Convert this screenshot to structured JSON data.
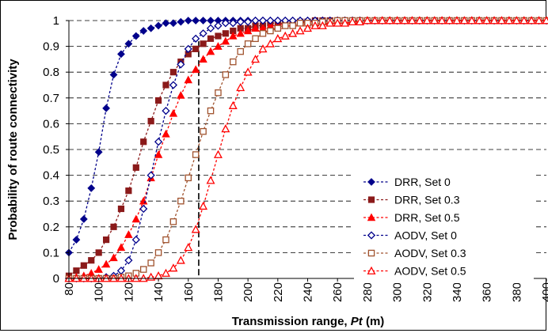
{
  "chart_data": {
    "type": "line",
    "title": "",
    "xlabel": "Transmission range, ",
    "xlabel_italic": "Pt",
    "xlabel_unit": " (m)",
    "ylabel": "Probability of route connectivity",
    "xlim": [
      80,
      400
    ],
    "ylim": [
      0,
      1
    ],
    "xticks": [
      80,
      100,
      120,
      140,
      160,
      180,
      200,
      220,
      240,
      260,
      280,
      300,
      320,
      340,
      360,
      380,
      400
    ],
    "yticks": [
      0,
      0.1,
      0.2,
      0.3,
      0.4,
      0.5,
      0.6,
      0.7,
      0.8,
      0.9,
      1
    ],
    "grid": "horizontal dashed",
    "legend_position": "bottom-right",
    "vertical_reference_line": {
      "x": 167
    },
    "x": [
      80,
      85,
      90,
      95,
      100,
      105,
      110,
      115,
      120,
      125,
      130,
      135,
      140,
      145,
      150,
      155,
      160,
      165,
      170,
      175,
      180,
      185,
      190,
      195,
      200,
      205,
      210,
      215,
      220,
      225,
      230,
      235,
      240,
      245,
      250,
      255,
      260,
      265,
      270,
      275,
      280,
      285,
      290,
      295,
      300,
      305,
      310,
      315,
      320,
      325,
      330,
      335,
      340,
      345,
      350,
      355,
      360,
      365,
      370,
      375,
      380,
      385,
      390,
      395,
      400
    ],
    "series": [
      {
        "name": "DRR, Set 0",
        "color": "#00008b",
        "marker": "diamond",
        "filled": true,
        "values": [
          0.1,
          0.15,
          0.23,
          0.35,
          0.49,
          0.66,
          0.79,
          0.87,
          0.91,
          0.94,
          0.96,
          0.97,
          0.98,
          0.99,
          0.99,
          0.995,
          1,
          1,
          1,
          1,
          1,
          1,
          1,
          1,
          1,
          1,
          1,
          1,
          1,
          1,
          1,
          1,
          1,
          1,
          1,
          1,
          1,
          1,
          1,
          1,
          1,
          1,
          1,
          1,
          1,
          1,
          1,
          1,
          1,
          1,
          1,
          1,
          1,
          1,
          1,
          1,
          1,
          1,
          1,
          1,
          1,
          1,
          1,
          1,
          1
        ]
      },
      {
        "name": "DRR, Set 0.3",
        "color": "#8b1a1a",
        "marker": "square",
        "filled": true,
        "values": [
          0.01,
          0.03,
          0.05,
          0.07,
          0.1,
          0.15,
          0.2,
          0.27,
          0.34,
          0.43,
          0.53,
          0.61,
          0.69,
          0.75,
          0.8,
          0.84,
          0.87,
          0.89,
          0.91,
          0.93,
          0.94,
          0.95,
          0.96,
          0.97,
          0.97,
          0.98,
          0.98,
          0.99,
          0.99,
          0.99,
          0.99,
          0.995,
          0.995,
          1,
          1,
          1,
          1,
          1,
          1,
          1,
          1,
          1,
          1,
          1,
          1,
          1,
          1,
          1,
          1,
          1,
          1,
          1,
          1,
          1,
          1,
          1,
          1,
          1,
          1,
          1,
          1,
          1,
          1,
          1,
          1
        ]
      },
      {
        "name": "DRR, Set 0.5",
        "color": "#ff0000",
        "marker": "triangle",
        "filled": true,
        "values": [
          0.002,
          0.005,
          0.01,
          0.02,
          0.035,
          0.055,
          0.08,
          0.12,
          0.17,
          0.23,
          0.3,
          0.39,
          0.48,
          0.56,
          0.64,
          0.71,
          0.77,
          0.81,
          0.85,
          0.88,
          0.9,
          0.92,
          0.94,
          0.95,
          0.96,
          0.97,
          0.97,
          0.98,
          0.98,
          0.99,
          0.99,
          0.99,
          0.995,
          0.995,
          1,
          1,
          1,
          1,
          1,
          1,
          1,
          1,
          1,
          1,
          1,
          1,
          1,
          1,
          1,
          1,
          1,
          1,
          1,
          1,
          1,
          1,
          1,
          1,
          1,
          1,
          1,
          1,
          1,
          1,
          1
        ]
      },
      {
        "name": "AODV, Set 0",
        "color": "#00008b",
        "marker": "diamond",
        "filled": false,
        "values": [
          0,
          0,
          0,
          0,
          0,
          0.005,
          0.01,
          0.03,
          0.07,
          0.15,
          0.27,
          0.4,
          0.53,
          0.65,
          0.75,
          0.83,
          0.89,
          0.93,
          0.95,
          0.97,
          0.98,
          0.99,
          0.99,
          0.995,
          0.995,
          1,
          1,
          1,
          1,
          1,
          1,
          1,
          1,
          1,
          1,
          1,
          1,
          1,
          1,
          1,
          1,
          1,
          1,
          1,
          1,
          1,
          1,
          1,
          1,
          1,
          1,
          1,
          1,
          1,
          1,
          1,
          1,
          1,
          1,
          1,
          1,
          1,
          1,
          1,
          1
        ]
      },
      {
        "name": "AODV, Set 0.3",
        "color": "#a0522d",
        "marker": "square",
        "filled": false,
        "values": [
          0,
          0,
          0,
          0,
          0,
          0,
          0,
          0.005,
          0.01,
          0.02,
          0.035,
          0.06,
          0.1,
          0.15,
          0.22,
          0.3,
          0.39,
          0.48,
          0.57,
          0.65,
          0.72,
          0.79,
          0.84,
          0.88,
          0.91,
          0.93,
          0.95,
          0.96,
          0.97,
          0.98,
          0.98,
          0.99,
          0.99,
          0.99,
          0.995,
          0.995,
          1,
          1,
          1,
          1,
          1,
          1,
          1,
          1,
          1,
          1,
          1,
          1,
          1,
          1,
          1,
          1,
          1,
          1,
          1,
          1,
          1,
          1,
          1,
          1,
          1,
          1,
          1,
          1,
          1
        ]
      },
      {
        "name": "AODV, Set 0.5",
        "color": "#ff0000",
        "marker": "triangle",
        "filled": false,
        "values": [
          0,
          0,
          0,
          0,
          0,
          0,
          0,
          0,
          0,
          0,
          0,
          0.005,
          0.01,
          0.02,
          0.04,
          0.07,
          0.12,
          0.19,
          0.28,
          0.38,
          0.48,
          0.58,
          0.67,
          0.74,
          0.8,
          0.85,
          0.89,
          0.91,
          0.93,
          0.94,
          0.95,
          0.96,
          0.97,
          0.98,
          0.98,
          0.99,
          0.99,
          0.99,
          0.995,
          0.995,
          1,
          1,
          1,
          1,
          1,
          1,
          1,
          1,
          1,
          1,
          1,
          1,
          1,
          1,
          1,
          1,
          1,
          1,
          1,
          1,
          1,
          1,
          1,
          1,
          1
        ]
      }
    ]
  }
}
